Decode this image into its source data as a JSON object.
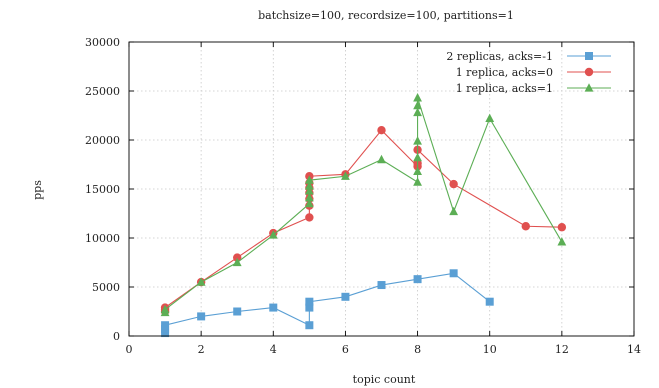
{
  "chart_data": {
    "type": "line",
    "title": "batchsize=100, recordsize=100, partitions=1",
    "xlabel": "topic count",
    "ylabel": "pps",
    "xlim": [
      0,
      14
    ],
    "ylim": [
      0,
      30000
    ],
    "xticks": [
      0,
      2,
      4,
      6,
      8,
      10,
      12,
      14
    ],
    "yticks": [
      0,
      5000,
      10000,
      15000,
      20000,
      25000,
      30000
    ],
    "grid": true,
    "legend": "top-right",
    "series": [
      {
        "name": "2 replicas, acks=-1",
        "color": "#5a9fd4",
        "marker": "square",
        "points": [
          [
            1,
            300
          ],
          [
            1,
            700
          ],
          [
            1,
            1100
          ],
          [
            2,
            2000
          ],
          [
            3,
            2500
          ],
          [
            4,
            2900
          ],
          [
            5,
            1100
          ],
          [
            5,
            2900
          ],
          [
            5,
            3500
          ],
          [
            6,
            4000
          ],
          [
            7,
            5200
          ],
          [
            8,
            5800
          ],
          [
            9,
            6400
          ],
          [
            10,
            3500
          ]
        ]
      },
      {
        "name": "1 replica, acks=0",
        "color": "#e0504f",
        "marker": "circle",
        "points": [
          [
            1,
            2500
          ],
          [
            1,
            2700
          ],
          [
            1,
            2900
          ],
          [
            2,
            5500
          ],
          [
            3,
            8000
          ],
          [
            4,
            10500
          ],
          [
            5,
            12100
          ],
          [
            5,
            13300
          ],
          [
            5,
            14000
          ],
          [
            5,
            14600
          ],
          [
            5,
            15100
          ],
          [
            5,
            15600
          ],
          [
            5,
            16300
          ],
          [
            6,
            16500
          ],
          [
            7,
            21000
          ],
          [
            8,
            17300
          ],
          [
            8,
            17600
          ],
          [
            8,
            19000
          ],
          [
            9,
            15500
          ],
          [
            11,
            11200
          ],
          [
            12,
            11100
          ]
        ]
      },
      {
        "name": "1 replica, acks=1",
        "color": "#5cae55",
        "marker": "triangle",
        "points": [
          [
            1,
            2400
          ],
          [
            1,
            2700
          ],
          [
            2,
            5500
          ],
          [
            3,
            7500
          ],
          [
            4,
            10300
          ],
          [
            5,
            13500
          ],
          [
            5,
            14100
          ],
          [
            5,
            14800
          ],
          [
            5,
            15300
          ],
          [
            5,
            15900
          ],
          [
            6,
            16300
          ],
          [
            7,
            18000
          ],
          [
            8,
            15700
          ],
          [
            8,
            16800
          ],
          [
            8,
            18200
          ],
          [
            8,
            19900
          ],
          [
            8,
            22800
          ],
          [
            8,
            23500
          ],
          [
            8,
            24300
          ],
          [
            9,
            12700
          ],
          [
            10,
            22200
          ],
          [
            12,
            9600
          ]
        ]
      }
    ]
  }
}
